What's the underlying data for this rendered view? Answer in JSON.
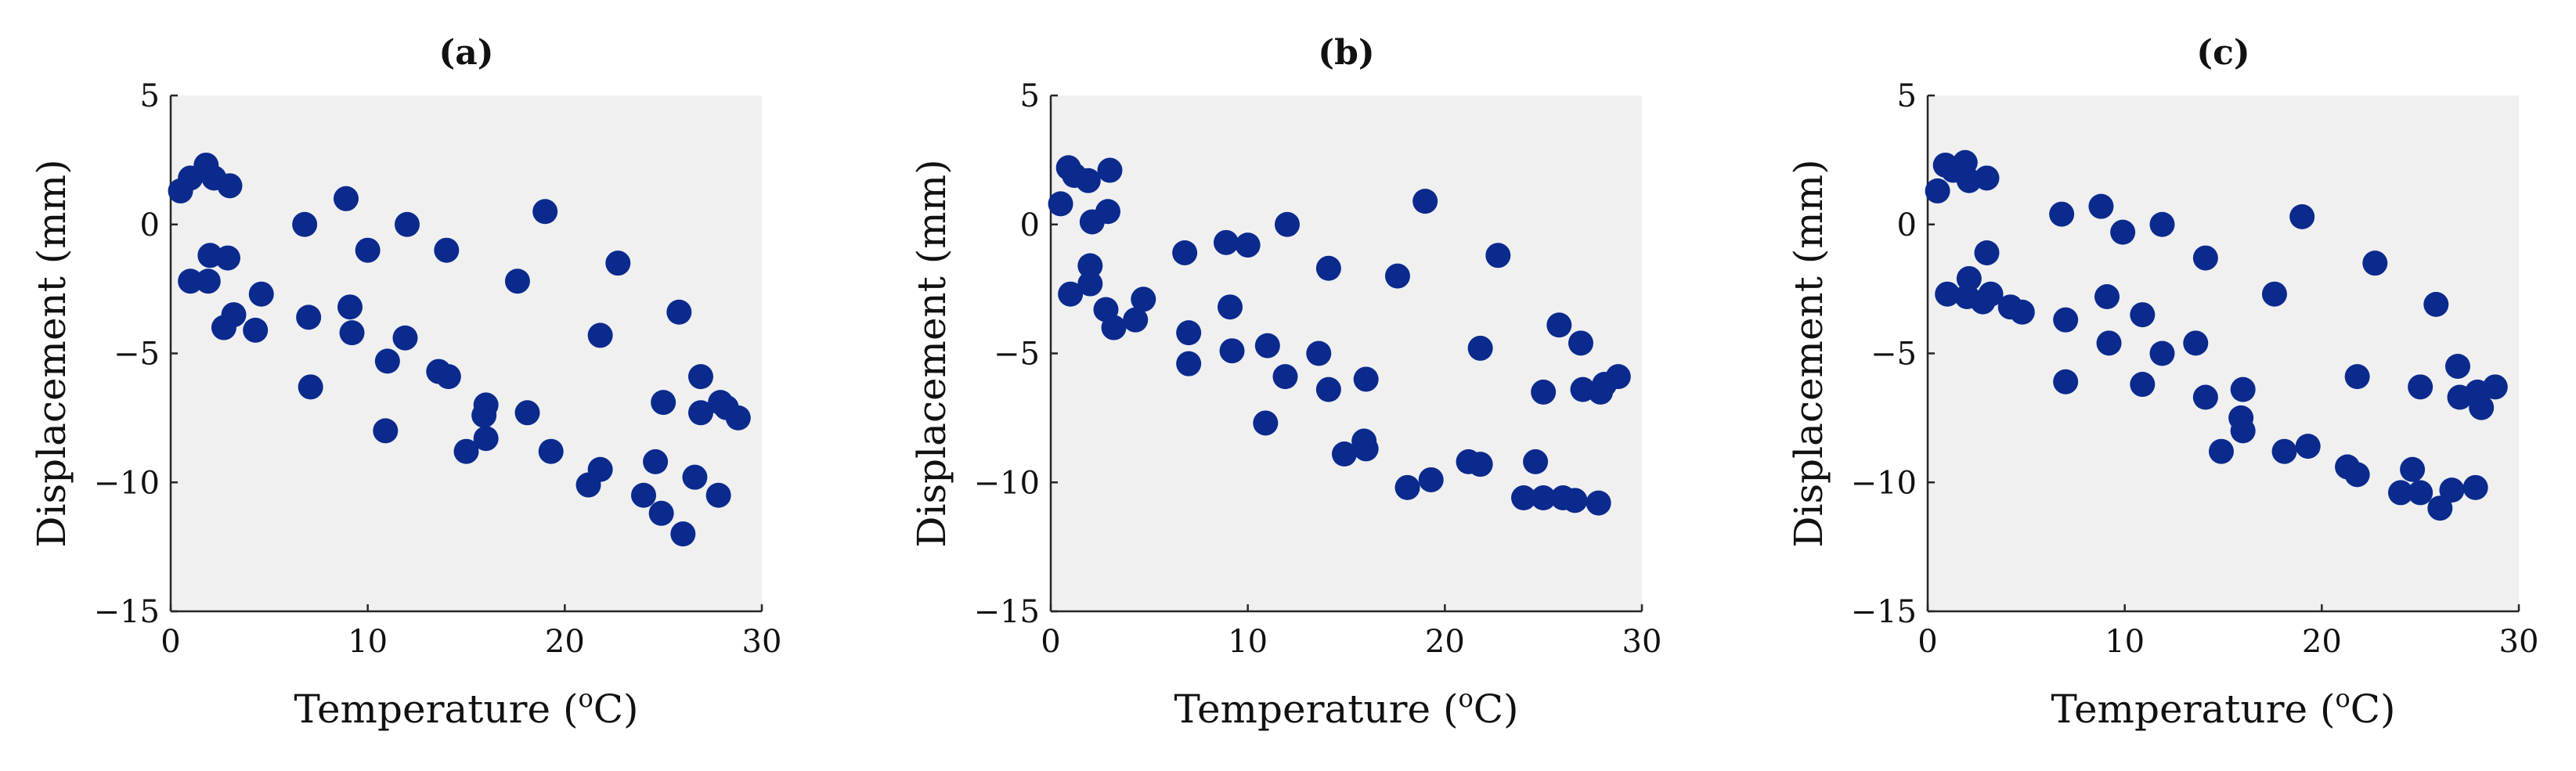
{
  "figure": {
    "marker_color": "#0a2a8e",
    "background_color": "#f0f0f0"
  },
  "chart_data": [
    {
      "type": "scatter",
      "title": "(a)",
      "xlabel": "Temperature (",
      "xlabel_sup": "o",
      "xlabel_suffix": "C)",
      "ylabel": "Displacement (mm)",
      "xlim": [
        0,
        30
      ],
      "ylim": [
        -15,
        5
      ],
      "xticks": [
        0,
        10,
        20,
        30
      ],
      "yticks": [
        5,
        0,
        -5,
        -10,
        -15
      ],
      "xtick_labels": [
        "0",
        "10",
        "20",
        "30"
      ],
      "ytick_labels": [
        "5",
        "0",
        "−5",
        "−10",
        "−15"
      ],
      "grid": false,
      "points": [
        {
          "x": 0.5,
          "y": 1.3
        },
        {
          "x": 1.0,
          "y": 1.8
        },
        {
          "x": 1.8,
          "y": 2.3
        },
        {
          "x": 2.2,
          "y": 1.8
        },
        {
          "x": 3.0,
          "y": 1.5
        },
        {
          "x": 1.0,
          "y": -2.2
        },
        {
          "x": 1.9,
          "y": -2.2
        },
        {
          "x": 2.0,
          "y": -1.2
        },
        {
          "x": 2.9,
          "y": -1.3
        },
        {
          "x": 3.2,
          "y": -3.5
        },
        {
          "x": 2.7,
          "y": -4.0
        },
        {
          "x": 4.3,
          "y": -4.1
        },
        {
          "x": 4.6,
          "y": -2.7
        },
        {
          "x": 6.8,
          "y": 0.0
        },
        {
          "x": 7.0,
          "y": -3.6
        },
        {
          "x": 7.1,
          "y": -6.3
        },
        {
          "x": 8.9,
          "y": 1.0
        },
        {
          "x": 9.1,
          "y": -3.2
        },
        {
          "x": 9.2,
          "y": -4.2
        },
        {
          "x": 10.0,
          "y": -1.0
        },
        {
          "x": 11.0,
          "y": -5.3
        },
        {
          "x": 10.9,
          "y": -8.0
        },
        {
          "x": 12.0,
          "y": 0.0
        },
        {
          "x": 11.9,
          "y": -4.4
        },
        {
          "x": 13.6,
          "y": -5.7
        },
        {
          "x": 14.1,
          "y": -5.9
        },
        {
          "x": 14.0,
          "y": -1.0
        },
        {
          "x": 15.0,
          "y": -8.8
        },
        {
          "x": 16.0,
          "y": -7.0
        },
        {
          "x": 15.9,
          "y": -7.4
        },
        {
          "x": 16.0,
          "y": -8.3
        },
        {
          "x": 17.6,
          "y": -2.2
        },
        {
          "x": 18.1,
          "y": -7.3
        },
        {
          "x": 19.0,
          "y": 0.5
        },
        {
          "x": 19.3,
          "y": -8.8
        },
        {
          "x": 21.2,
          "y": -10.1
        },
        {
          "x": 21.8,
          "y": -9.5
        },
        {
          "x": 21.8,
          "y": -4.3
        },
        {
          "x": 22.7,
          "y": -1.5
        },
        {
          "x": 24.0,
          "y": -10.5
        },
        {
          "x": 24.6,
          "y": -9.2
        },
        {
          "x": 24.9,
          "y": -11.2
        },
        {
          "x": 25.0,
          "y": -6.9
        },
        {
          "x": 25.8,
          "y": -3.4
        },
        {
          "x": 26.0,
          "y": -12.0
        },
        {
          "x": 26.6,
          "y": -9.8
        },
        {
          "x": 26.9,
          "y": -5.9
        },
        {
          "x": 26.9,
          "y": -7.3
        },
        {
          "x": 27.8,
          "y": -10.5
        },
        {
          "x": 27.9,
          "y": -6.9
        },
        {
          "x": 28.2,
          "y": -7.1
        },
        {
          "x": 28.8,
          "y": -7.5
        }
      ]
    },
    {
      "type": "scatter",
      "title": "(b)",
      "xlabel": "Temperature (",
      "xlabel_sup": "o",
      "xlabel_suffix": "C)",
      "ylabel": "Displacement (mm)",
      "xlim": [
        0,
        30
      ],
      "ylim": [
        -15,
        5
      ],
      "xticks": [
        0,
        10,
        20,
        30
      ],
      "yticks": [
        5,
        0,
        -5,
        -10,
        -15
      ],
      "xtick_labels": [
        "0",
        "10",
        "20",
        "30"
      ],
      "ytick_labels": [
        "5",
        "0",
        "−5",
        "−10",
        "−15"
      ],
      "grid": false,
      "points": [
        {
          "x": 0.5,
          "y": 0.8
        },
        {
          "x": 0.9,
          "y": 2.2
        },
        {
          "x": 1.2,
          "y": 1.9
        },
        {
          "x": 1.9,
          "y": 1.7
        },
        {
          "x": 2.1,
          "y": 0.1
        },
        {
          "x": 2.9,
          "y": 0.5
        },
        {
          "x": 3.0,
          "y": 2.1
        },
        {
          "x": 1.0,
          "y": -2.7
        },
        {
          "x": 2.0,
          "y": -2.3
        },
        {
          "x": 2.0,
          "y": -1.6
        },
        {
          "x": 2.8,
          "y": -3.3
        },
        {
          "x": 3.2,
          "y": -4.0
        },
        {
          "x": 4.3,
          "y": -3.7
        },
        {
          "x": 4.7,
          "y": -2.9
        },
        {
          "x": 6.8,
          "y": -1.1
        },
        {
          "x": 7.0,
          "y": -4.2
        },
        {
          "x": 7.0,
          "y": -5.4
        },
        {
          "x": 8.9,
          "y": -0.7
        },
        {
          "x": 9.1,
          "y": -3.2
        },
        {
          "x": 9.2,
          "y": -4.9
        },
        {
          "x": 10.0,
          "y": -0.8
        },
        {
          "x": 11.0,
          "y": -4.7
        },
        {
          "x": 10.9,
          "y": -7.7
        },
        {
          "x": 12.0,
          "y": 0.0
        },
        {
          "x": 11.9,
          "y": -5.9
        },
        {
          "x": 13.6,
          "y": -5.0
        },
        {
          "x": 14.1,
          "y": -6.4
        },
        {
          "x": 14.1,
          "y": -1.7
        },
        {
          "x": 14.9,
          "y": -8.9
        },
        {
          "x": 15.9,
          "y": -8.4
        },
        {
          "x": 16.0,
          "y": -8.7
        },
        {
          "x": 16.0,
          "y": -6.0
        },
        {
          "x": 17.6,
          "y": -2.0
        },
        {
          "x": 18.1,
          "y": -10.2
        },
        {
          "x": 19.0,
          "y": 0.9
        },
        {
          "x": 19.3,
          "y": -9.9
        },
        {
          "x": 21.2,
          "y": -9.2
        },
        {
          "x": 21.8,
          "y": -9.3
        },
        {
          "x": 21.8,
          "y": -4.8
        },
        {
          "x": 22.7,
          "y": -1.2
        },
        {
          "x": 24.0,
          "y": -10.6
        },
        {
          "x": 24.6,
          "y": -9.2
        },
        {
          "x": 25.0,
          "y": -10.6
        },
        {
          "x": 25.0,
          "y": -6.5
        },
        {
          "x": 25.8,
          "y": -3.9
        },
        {
          "x": 26.0,
          "y": -10.6
        },
        {
          "x": 26.6,
          "y": -10.7
        },
        {
          "x": 26.9,
          "y": -4.6
        },
        {
          "x": 27.0,
          "y": -6.4
        },
        {
          "x": 27.8,
          "y": -10.8
        },
        {
          "x": 27.9,
          "y": -6.5
        },
        {
          "x": 28.1,
          "y": -6.2
        },
        {
          "x": 28.8,
          "y": -5.9
        }
      ]
    },
    {
      "type": "scatter",
      "title": "(c)",
      "xlabel": "Temperature (",
      "xlabel_sup": "o",
      "xlabel_suffix": "C)",
      "ylabel": "Displacement (mm)",
      "xlim": [
        0,
        30
      ],
      "ylim": [
        -15,
        5
      ],
      "xticks": [
        0,
        10,
        20,
        30
      ],
      "yticks": [
        5,
        0,
        -5,
        -10,
        -15
      ],
      "xtick_labels": [
        "0",
        "10",
        "20",
        "30"
      ],
      "ytick_labels": [
        "5",
        "0",
        "−5",
        "−10",
        "−15"
      ],
      "grid": false,
      "points": [
        {
          "x": 0.5,
          "y": 1.3
        },
        {
          "x": 0.9,
          "y": 2.3
        },
        {
          "x": 1.3,
          "y": 2.1
        },
        {
          "x": 1.9,
          "y": 2.4
        },
        {
          "x": 2.1,
          "y": 1.7
        },
        {
          "x": 3.0,
          "y": 1.8
        },
        {
          "x": 1.0,
          "y": -2.7
        },
        {
          "x": 2.0,
          "y": -2.8
        },
        {
          "x": 2.1,
          "y": -2.1
        },
        {
          "x": 2.8,
          "y": -3.0
        },
        {
          "x": 3.0,
          "y": -1.1
        },
        {
          "x": 3.2,
          "y": -2.7
        },
        {
          "x": 4.2,
          "y": -3.2
        },
        {
          "x": 4.8,
          "y": -3.4
        },
        {
          "x": 6.8,
          "y": 0.4
        },
        {
          "x": 7.0,
          "y": -3.7
        },
        {
          "x": 7.0,
          "y": -6.1
        },
        {
          "x": 8.8,
          "y": 0.7
        },
        {
          "x": 9.1,
          "y": -2.8
        },
        {
          "x": 9.2,
          "y": -4.6
        },
        {
          "x": 9.9,
          "y": -0.3
        },
        {
          "x": 10.9,
          "y": -3.5
        },
        {
          "x": 10.9,
          "y": -6.2
        },
        {
          "x": 11.9,
          "y": 0.0
        },
        {
          "x": 11.9,
          "y": -5.0
        },
        {
          "x": 13.6,
          "y": -4.6
        },
        {
          "x": 14.1,
          "y": -6.7
        },
        {
          "x": 14.1,
          "y": -1.3
        },
        {
          "x": 14.9,
          "y": -8.8
        },
        {
          "x": 16.0,
          "y": -6.4
        },
        {
          "x": 15.9,
          "y": -7.5
        },
        {
          "x": 16.0,
          "y": -8.0
        },
        {
          "x": 17.6,
          "y": -2.7
        },
        {
          "x": 18.1,
          "y": -8.8
        },
        {
          "x": 19.0,
          "y": 0.3
        },
        {
          "x": 19.3,
          "y": -8.6
        },
        {
          "x": 21.3,
          "y": -9.4
        },
        {
          "x": 21.8,
          "y": -9.7
        },
        {
          "x": 21.8,
          "y": -5.9
        },
        {
          "x": 22.7,
          "y": -1.5
        },
        {
          "x": 24.0,
          "y": -10.4
        },
        {
          "x": 24.6,
          "y": -9.5
        },
        {
          "x": 25.0,
          "y": -10.4
        },
        {
          "x": 25.0,
          "y": -6.3
        },
        {
          "x": 25.8,
          "y": -3.1
        },
        {
          "x": 26.0,
          "y": -11.0
        },
        {
          "x": 26.6,
          "y": -10.3
        },
        {
          "x": 26.9,
          "y": -5.5
        },
        {
          "x": 27.0,
          "y": -6.7
        },
        {
          "x": 27.8,
          "y": -10.2
        },
        {
          "x": 27.9,
          "y": -6.5
        },
        {
          "x": 28.1,
          "y": -7.1
        },
        {
          "x": 28.8,
          "y": -6.3
        }
      ]
    }
  ]
}
